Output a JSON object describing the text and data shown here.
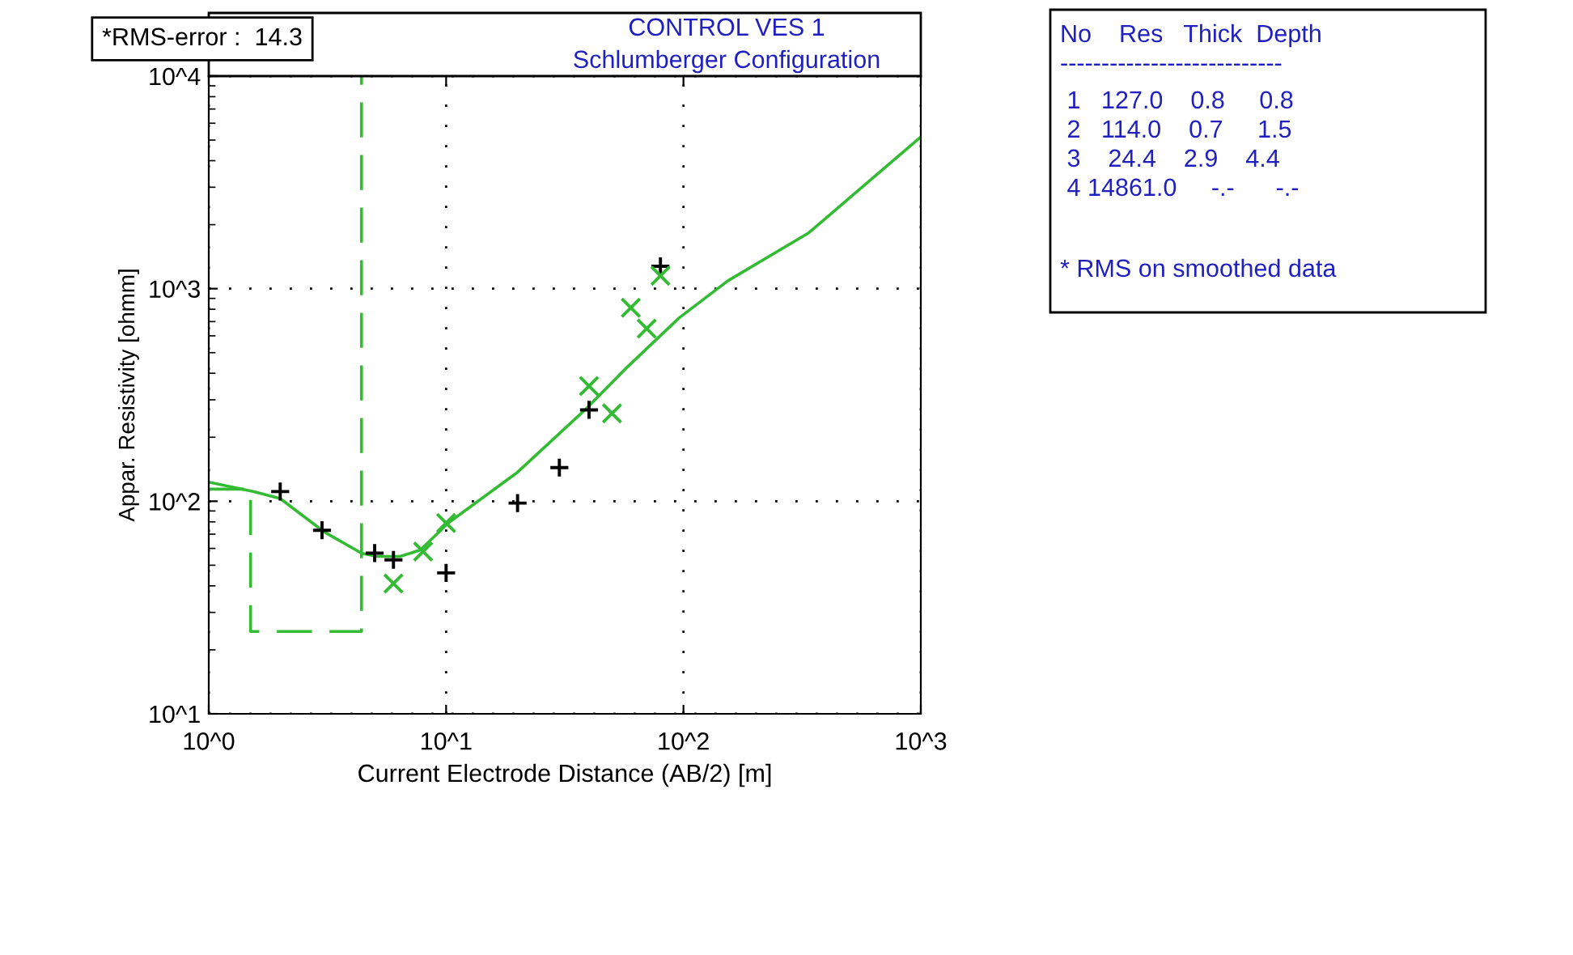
{
  "chart_data": {
    "type": "line",
    "title": "CONTROL VES 1",
    "subtitle": "Schlumberger Configuration",
    "xlabel": "Current Electrode Distance (AB/2) [m]",
    "ylabel": "Appar. Resistivity [ohmm]",
    "log": "xy",
    "xlim": [
      1,
      1000
    ],
    "ylim": [
      10,
      10000
    ],
    "xticks": [
      {
        "value": 1,
        "label": "10^0"
      },
      {
        "value": 10,
        "label": "10^1"
      },
      {
        "value": 100,
        "label": "10^2"
      },
      {
        "value": 1000,
        "label": "10^3"
      }
    ],
    "yticks": [
      {
        "value": 10,
        "label": "10^1"
      },
      {
        "value": 100,
        "label": "10^2"
      },
      {
        "value": 1000,
        "label": "10^3"
      },
      {
        "value": 10000,
        "label": "10^4"
      }
    ],
    "grid": true,
    "series": [
      {
        "color": "#33bb33",
        "line_style": "dashed",
        "x": [
          1,
          1.5,
          1.5,
          4.4,
          4.4
        ],
        "values": [
          114,
          114,
          24.4,
          24.4,
          10000
        ]
      },
      {
        "color": "#33bb33",
        "line_style": "solid",
        "x": [
          1,
          1.55,
          2.0,
          3.05,
          4.4,
          5.1,
          6.4,
          7.8,
          10.2,
          20,
          39,
          57,
          96,
          154,
          337,
          1000
        ],
        "values": [
          123,
          111,
          103,
          72,
          57,
          55,
          55,
          59,
          79,
          137,
          273,
          420,
          730,
          1090,
          1830,
          5180
        ]
      },
      {
        "type": "scatter",
        "marker": "plus",
        "color": "#000000",
        "x": [
          2,
          3,
          5,
          6,
          10,
          20,
          30,
          40,
          80
        ],
        "values": [
          111,
          73,
          57,
          53,
          46,
          98,
          144,
          269,
          1274
        ]
      },
      {
        "type": "scatter",
        "marker": "cross",
        "color": "#33bb33",
        "x": [
          6,
          8,
          10,
          40,
          50,
          60,
          70,
          80
        ],
        "values": [
          41,
          58,
          79,
          348,
          259,
          813,
          649,
          1150
        ]
      }
    ],
    "annotations": [
      "*RMS-error :  14.3",
      "No    Res   Thick  Depth",
      "---------------------------",
      " 1   127.0    0.8     0.8",
      " 2   114.0    0.7     1.5",
      " 3    24.4    2.9    4.4",
      " 4 14861.0     -.-      -.-",
      "* RMS on smoothed data"
    ]
  }
}
